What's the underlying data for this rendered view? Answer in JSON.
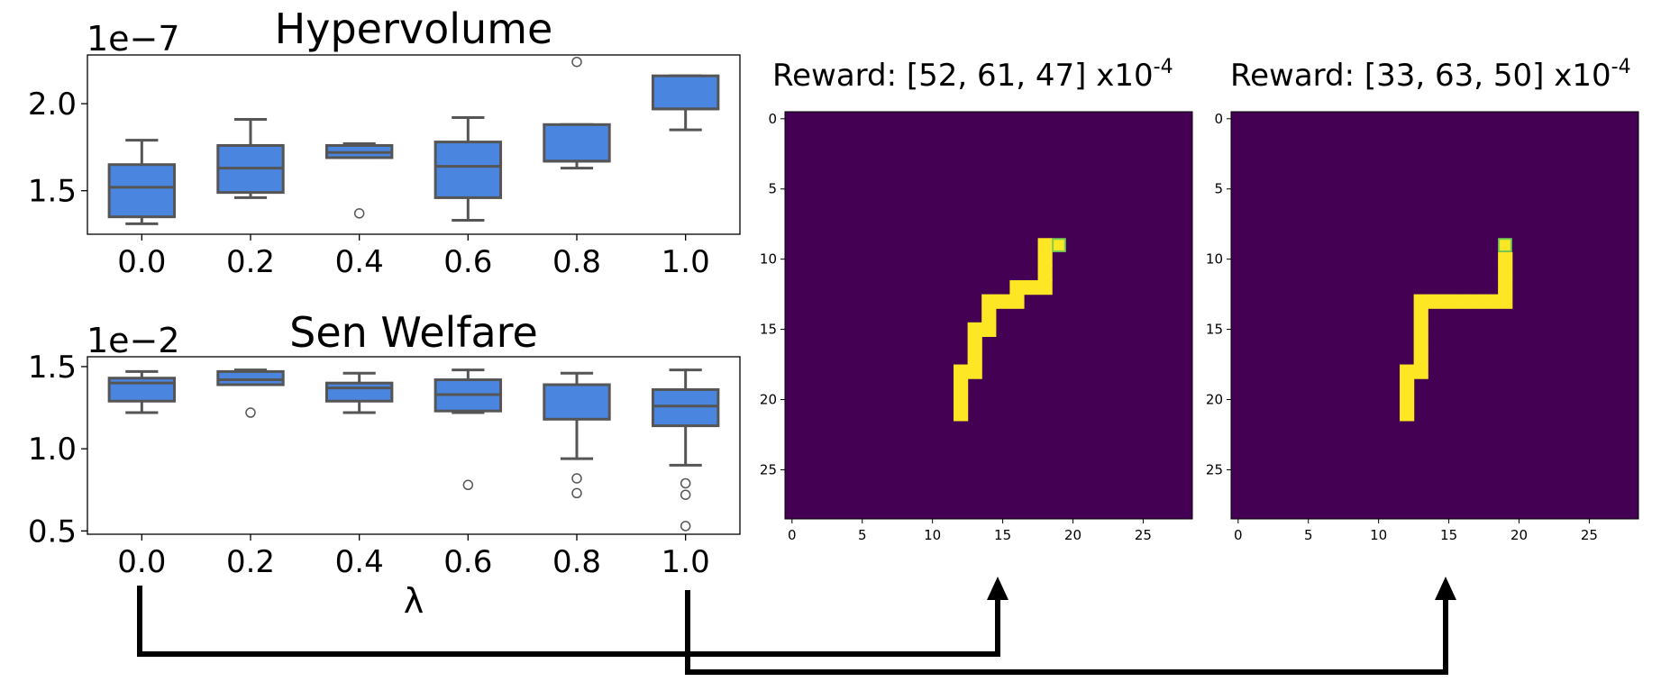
{
  "colors": {
    "box_fill": "#4a86e0",
    "box_stroke": "#555555",
    "heat_background": "#440154",
    "heat_path": "#fde725",
    "heat_target": "#7ad151",
    "arrow": "#000000"
  },
  "chart_data": [
    {
      "type": "box",
      "title": "Hypervolume",
      "scale_label": "1e−7",
      "categories": [
        "0.0",
        "0.2",
        "0.4",
        "0.6",
        "0.8",
        "1.0"
      ],
      "xlabel": "",
      "ylim": [
        1.25,
        2.28
      ],
      "yticks": [
        "1.5",
        "2.0"
      ],
      "ytick_values": [
        1.5,
        2.0
      ],
      "boxes": [
        {
          "whislo": 1.31,
          "q1": 1.35,
          "med": 1.52,
          "q3": 1.65,
          "whishi": 1.79,
          "fliers": []
        },
        {
          "whislo": 1.46,
          "q1": 1.49,
          "med": 1.63,
          "q3": 1.76,
          "whishi": 1.91,
          "fliers": []
        },
        {
          "whislo": 1.69,
          "q1": 1.69,
          "med": 1.72,
          "q3": 1.76,
          "whishi": 1.77,
          "fliers": [
            1.37
          ]
        },
        {
          "whislo": 1.33,
          "q1": 1.46,
          "med": 1.64,
          "q3": 1.78,
          "whishi": 1.92,
          "fliers": []
        },
        {
          "whislo": 1.63,
          "q1": 1.67,
          "med": 1.67,
          "q3": 1.88,
          "whishi": 1.88,
          "fliers": [
            2.24
          ]
        },
        {
          "whislo": 1.85,
          "q1": 1.97,
          "med": 1.97,
          "q3": 2.16,
          "whishi": 2.16,
          "fliers": []
        }
      ]
    },
    {
      "type": "box",
      "title": "Sen Welfare",
      "scale_label": "1e−2",
      "categories": [
        "0.0",
        "0.2",
        "0.4",
        "0.6",
        "0.8",
        "1.0"
      ],
      "xlabel": "λ",
      "ylim": [
        0.48,
        1.56
      ],
      "yticks": [
        "0.5",
        "1.0",
        "1.5"
      ],
      "ytick_values": [
        0.5,
        1.0,
        1.5
      ],
      "boxes": [
        {
          "whislo": 1.22,
          "q1": 1.29,
          "med": 1.4,
          "q3": 1.43,
          "whishi": 1.47,
          "fliers": []
        },
        {
          "whislo": 1.39,
          "q1": 1.39,
          "med": 1.42,
          "q3": 1.47,
          "whishi": 1.48,
          "fliers": [
            1.22
          ]
        },
        {
          "whislo": 1.22,
          "q1": 1.29,
          "med": 1.37,
          "q3": 1.4,
          "whishi": 1.46,
          "fliers": []
        },
        {
          "whislo": 1.22,
          "q1": 1.23,
          "med": 1.33,
          "q3": 1.42,
          "whishi": 1.48,
          "fliers": [
            0.78
          ]
        },
        {
          "whislo": 0.94,
          "q1": 1.18,
          "med": 1.39,
          "q3": 1.39,
          "whishi": 1.46,
          "fliers": [
            0.82,
            0.73
          ]
        },
        {
          "whislo": 0.9,
          "q1": 1.14,
          "med": 1.26,
          "q3": 1.36,
          "whishi": 1.48,
          "fliers": [
            0.79,
            0.72,
            0.53
          ]
        }
      ]
    },
    {
      "type": "heatmap",
      "title": "Reward: [52, 61, 47] x10",
      "title_sup": "-4",
      "grid_size": 29,
      "xticks": [
        "0",
        "5",
        "10",
        "15",
        "20",
        "25"
      ],
      "yticks": [
        "0",
        "5",
        "10",
        "15",
        "20",
        "25"
      ],
      "path_cells": [
        [
          12,
          18
        ],
        [
          12,
          19
        ],
        [
          12,
          20
        ],
        [
          12,
          21
        ],
        [
          13,
          15
        ],
        [
          13,
          16
        ],
        [
          13,
          17
        ],
        [
          13,
          18
        ],
        [
          14,
          13
        ],
        [
          14,
          14
        ],
        [
          14,
          15
        ],
        [
          15,
          13
        ],
        [
          16,
          12
        ],
        [
          16,
          13
        ],
        [
          17,
          12
        ],
        [
          18,
          9
        ],
        [
          18,
          10
        ],
        [
          18,
          11
        ],
        [
          18,
          12
        ]
      ],
      "target_cell": [
        19,
        9
      ]
    },
    {
      "type": "heatmap",
      "title": "Reward: [33, 63, 50] x10",
      "title_sup": "-4",
      "grid_size": 29,
      "xticks": [
        "0",
        "5",
        "10",
        "15",
        "20",
        "25"
      ],
      "yticks": [
        "0",
        "5",
        "10",
        "15",
        "20",
        "25"
      ],
      "path_cells": [
        [
          12,
          18
        ],
        [
          12,
          19
        ],
        [
          12,
          20
        ],
        [
          12,
          21
        ],
        [
          13,
          13
        ],
        [
          13,
          14
        ],
        [
          13,
          15
        ],
        [
          13,
          16
        ],
        [
          13,
          17
        ],
        [
          13,
          18
        ],
        [
          14,
          13
        ],
        [
          15,
          13
        ],
        [
          16,
          13
        ],
        [
          17,
          13
        ],
        [
          18,
          13
        ],
        [
          19,
          10
        ],
        [
          19,
          11
        ],
        [
          19,
          12
        ],
        [
          19,
          13
        ]
      ],
      "target_cell": [
        19,
        9
      ]
    }
  ]
}
